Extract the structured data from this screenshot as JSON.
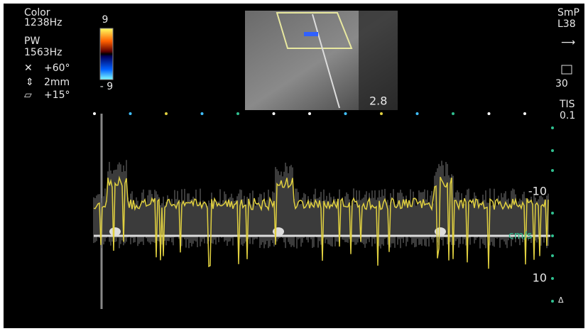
{
  "left_panel": {
    "color_label": "Color",
    "color_freq": "1238Hz",
    "pw_label": "PW",
    "pw_freq": "1563Hz",
    "angle": "+60°",
    "gate": "2mm",
    "steer": "+15°"
  },
  "color_bar": {
    "max": "9",
    "min": "- 9"
  },
  "image_inset": {
    "depth": "2.8"
  },
  "right_panel": {
    "preset": "SmP",
    "probe": "L38",
    "cf_value": "30",
    "tis_label": "TIS",
    "tis_value": "0.1"
  },
  "velocity_scale": {
    "upper": "-10",
    "unit": "cm/s",
    "lower": "10"
  }
}
